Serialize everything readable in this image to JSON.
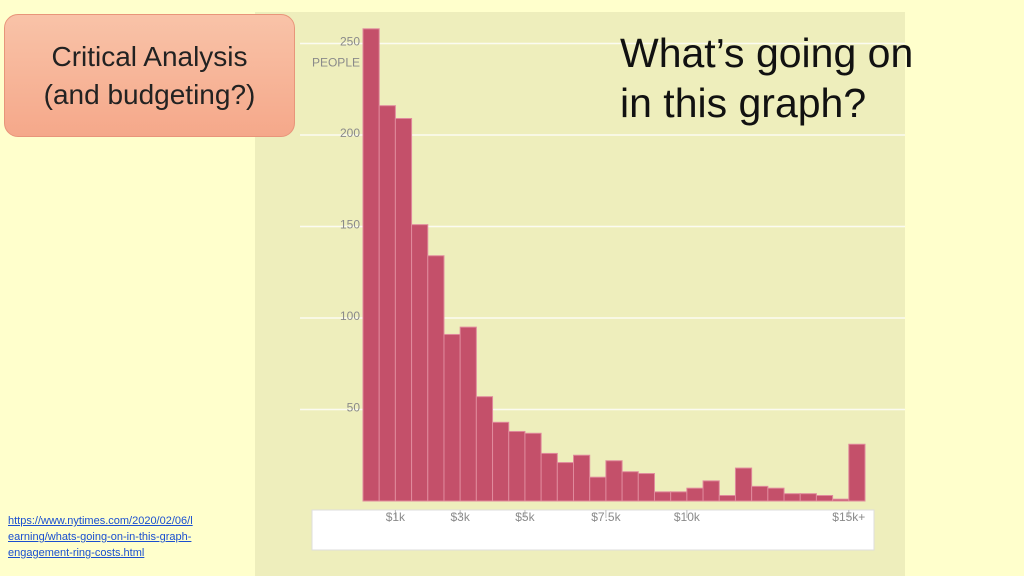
{
  "badge": [
    "Critical Analysis",
    "(and budgeting?)"
  ],
  "heading": [
    "What’s going on",
    "in this graph?"
  ],
  "source_link": [
    "https://www.nytimes.com/2020/02/06/l",
    "earning/whats-going-on-in-this-graph-",
    "engagement-ring-costs.html"
  ],
  "chart_data": {
    "type": "histogram",
    "color": "#c4506a",
    "grid": true,
    "y_label": "PEOPLE",
    "bins": [
      0,
      500,
      1000,
      1500,
      2000,
      2500,
      3000,
      3500,
      4000,
      4500,
      5000,
      5500,
      6000,
      6500,
      7000,
      7500,
      8000,
      8500,
      9000,
      9500,
      10000,
      10500,
      11000,
      11500,
      12000,
      12500,
      13000,
      13500,
      14000,
      14500,
      15000,
      15500
    ],
    "values": [
      258,
      216,
      209,
      151,
      134,
      91,
      95,
      57,
      43,
      38,
      37,
      26,
      21,
      25,
      13,
      22,
      16,
      15,
      5,
      5,
      7,
      11,
      3,
      18,
      8,
      7,
      4,
      4,
      3,
      1,
      31
    ],
    "xlim": [
      0,
      15500
    ],
    "xticks": [
      {
        "value": 1000,
        "label": "$1k"
      },
      {
        "value": 3000,
        "label": "$3k"
      },
      {
        "value": 5000,
        "label": "$5k"
      },
      {
        "value": 7500,
        "label": "$7.5k"
      },
      {
        "value": 10000,
        "label": "$10k"
      },
      {
        "value": 15000,
        "label": "$15k+"
      }
    ],
    "ylim": [
      0,
      265
    ],
    "yticks": [
      50,
      100,
      150,
      200,
      250
    ]
  }
}
